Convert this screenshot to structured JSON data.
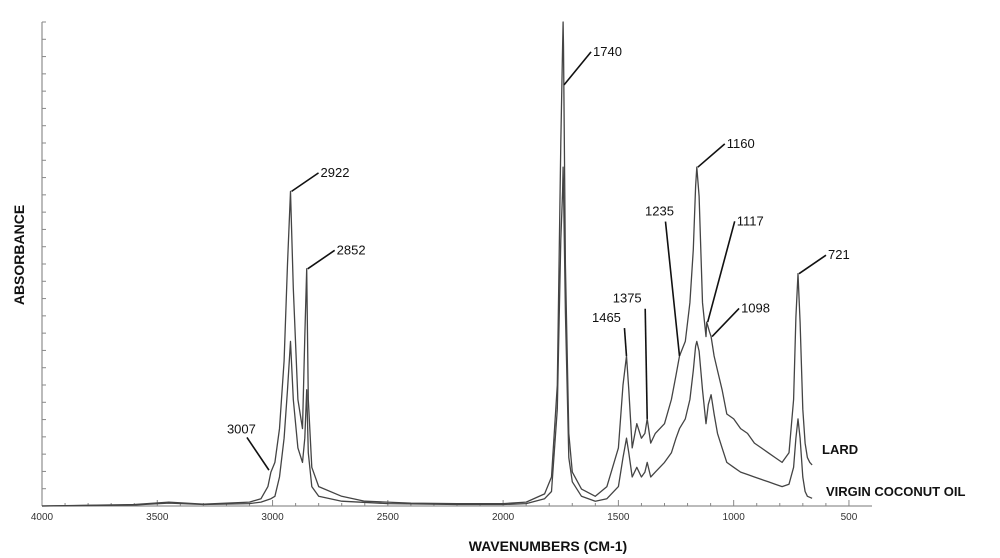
{
  "chart_data": {
    "type": "line",
    "title": "",
    "xlabel": "WAVENUMBERS (CM-1)",
    "ylabel": "ABSORBANCE",
    "xlim": [
      4000,
      400
    ],
    "x_reversed": true,
    "ylim": [
      0,
      1
    ],
    "x_ticks": [
      4000,
      3500,
      3000,
      2500,
      2000,
      1500,
      1000,
      500
    ],
    "grid": false,
    "series": [
      {
        "name": "LARD",
        "color": "#444444",
        "points": [
          [
            4000,
            0.0
          ],
          [
            3600,
            0.003
          ],
          [
            3450,
            0.008
          ],
          [
            3300,
            0.004
          ],
          [
            3100,
            0.008
          ],
          [
            3050,
            0.015
          ],
          [
            3020,
            0.04
          ],
          [
            3007,
            0.07
          ],
          [
            2990,
            0.09
          ],
          [
            2970,
            0.16
          ],
          [
            2950,
            0.3
          ],
          [
            2935,
            0.5
          ],
          [
            2922,
            0.65
          ],
          [
            2910,
            0.45
          ],
          [
            2890,
            0.22
          ],
          [
            2870,
            0.16
          ],
          [
            2860,
            0.35
          ],
          [
            2852,
            0.49
          ],
          [
            2845,
            0.22
          ],
          [
            2830,
            0.08
          ],
          [
            2800,
            0.04
          ],
          [
            2700,
            0.02
          ],
          [
            2600,
            0.01
          ],
          [
            2400,
            0.006
          ],
          [
            2200,
            0.005
          ],
          [
            2000,
            0.005
          ],
          [
            1900,
            0.008
          ],
          [
            1820,
            0.025
          ],
          [
            1790,
            0.06
          ],
          [
            1765,
            0.25
          ],
          [
            1750,
            0.75
          ],
          [
            1742,
            0.95
          ],
          [
            1740,
            1.0
          ],
          [
            1738,
            0.95
          ],
          [
            1730,
            0.5
          ],
          [
            1715,
            0.15
          ],
          [
            1700,
            0.07
          ],
          [
            1660,
            0.035
          ],
          [
            1600,
            0.02
          ],
          [
            1550,
            0.04
          ],
          [
            1500,
            0.12
          ],
          [
            1480,
            0.25
          ],
          [
            1465,
            0.31
          ],
          [
            1455,
            0.24
          ],
          [
            1440,
            0.12
          ],
          [
            1420,
            0.17
          ],
          [
            1400,
            0.14
          ],
          [
            1385,
            0.15
          ],
          [
            1375,
            0.18
          ],
          [
            1360,
            0.13
          ],
          [
            1340,
            0.15
          ],
          [
            1300,
            0.17
          ],
          [
            1270,
            0.22
          ],
          [
            1250,
            0.27
          ],
          [
            1235,
            0.31
          ],
          [
            1210,
            0.34
          ],
          [
            1190,
            0.42
          ],
          [
            1175,
            0.53
          ],
          [
            1165,
            0.66
          ],
          [
            1160,
            0.7
          ],
          [
            1150,
            0.64
          ],
          [
            1135,
            0.42
          ],
          [
            1120,
            0.35
          ],
          [
            1117,
            0.38
          ],
          [
            1105,
            0.36
          ],
          [
            1098,
            0.35
          ],
          [
            1085,
            0.31
          ],
          [
            1070,
            0.28
          ],
          [
            1050,
            0.24
          ],
          [
            1030,
            0.19
          ],
          [
            1000,
            0.18
          ],
          [
            970,
            0.16
          ],
          [
            940,
            0.15
          ],
          [
            910,
            0.13
          ],
          [
            880,
            0.12
          ],
          [
            850,
            0.11
          ],
          [
            820,
            0.1
          ],
          [
            790,
            0.09
          ],
          [
            760,
            0.11
          ],
          [
            740,
            0.22
          ],
          [
            730,
            0.39
          ],
          [
            721,
            0.48
          ],
          [
            712,
            0.38
          ],
          [
            700,
            0.2
          ],
          [
            690,
            0.13
          ],
          [
            680,
            0.1
          ],
          [
            670,
            0.09
          ],
          [
            660,
            0.085
          ]
        ]
      },
      {
        "name": "VIRGIN COCONUT OIL",
        "color": "#444444",
        "points": [
          [
            4000,
            0.0
          ],
          [
            3600,
            0.002
          ],
          [
            3450,
            0.006
          ],
          [
            3300,
            0.003
          ],
          [
            3100,
            0.005
          ],
          [
            3050,
            0.008
          ],
          [
            3007,
            0.015
          ],
          [
            2990,
            0.02
          ],
          [
            2970,
            0.06
          ],
          [
            2950,
            0.14
          ],
          [
            2935,
            0.24
          ],
          [
            2922,
            0.34
          ],
          [
            2910,
            0.22
          ],
          [
            2890,
            0.12
          ],
          [
            2870,
            0.09
          ],
          [
            2860,
            0.14
          ],
          [
            2852,
            0.24
          ],
          [
            2845,
            0.11
          ],
          [
            2830,
            0.04
          ],
          [
            2800,
            0.02
          ],
          [
            2700,
            0.01
          ],
          [
            2500,
            0.005
          ],
          [
            2200,
            0.003
          ],
          [
            2000,
            0.003
          ],
          [
            1900,
            0.005
          ],
          [
            1820,
            0.015
          ],
          [
            1790,
            0.03
          ],
          [
            1765,
            0.2
          ],
          [
            1750,
            0.55
          ],
          [
            1742,
            0.65
          ],
          [
            1740,
            0.7
          ],
          [
            1738,
            0.66
          ],
          [
            1730,
            0.4
          ],
          [
            1715,
            0.1
          ],
          [
            1700,
            0.05
          ],
          [
            1660,
            0.02
          ],
          [
            1600,
            0.01
          ],
          [
            1550,
            0.015
          ],
          [
            1500,
            0.04
          ],
          [
            1480,
            0.1
          ],
          [
            1465,
            0.14
          ],
          [
            1455,
            0.11
          ],
          [
            1440,
            0.06
          ],
          [
            1420,
            0.08
          ],
          [
            1400,
            0.06
          ],
          [
            1385,
            0.07
          ],
          [
            1375,
            0.09
          ],
          [
            1360,
            0.06
          ],
          [
            1340,
            0.07
          ],
          [
            1300,
            0.09
          ],
          [
            1270,
            0.11
          ],
          [
            1250,
            0.14
          ],
          [
            1235,
            0.16
          ],
          [
            1210,
            0.18
          ],
          [
            1190,
            0.22
          ],
          [
            1175,
            0.28
          ],
          [
            1165,
            0.33
          ],
          [
            1160,
            0.34
          ],
          [
            1150,
            0.32
          ],
          [
            1135,
            0.24
          ],
          [
            1120,
            0.17
          ],
          [
            1110,
            0.21
          ],
          [
            1098,
            0.23
          ],
          [
            1085,
            0.19
          ],
          [
            1070,
            0.15
          ],
          [
            1050,
            0.12
          ],
          [
            1030,
            0.09
          ],
          [
            1000,
            0.08
          ],
          [
            970,
            0.07
          ],
          [
            940,
            0.065
          ],
          [
            910,
            0.06
          ],
          [
            880,
            0.055
          ],
          [
            850,
            0.05
          ],
          [
            820,
            0.045
          ],
          [
            790,
            0.04
          ],
          [
            760,
            0.045
          ],
          [
            740,
            0.08
          ],
          [
            730,
            0.14
          ],
          [
            721,
            0.18
          ],
          [
            712,
            0.14
          ],
          [
            700,
            0.06
          ],
          [
            690,
            0.03
          ],
          [
            680,
            0.02
          ],
          [
            670,
            0.018
          ],
          [
            660,
            0.016
          ]
        ]
      }
    ],
    "annotations": [
      {
        "label": "1740",
        "x": 1740,
        "y": 0.87,
        "ly": 0.93
      },
      {
        "label": "2922",
        "x": 2922,
        "y": 0.65,
        "ly": 0.68
      },
      {
        "label": "2852",
        "x": 2852,
        "y": 0.49,
        "ly": 0.52
      },
      {
        "label": "3007",
        "x": 3007,
        "y": 0.07,
        "ly": 0.15
      },
      {
        "label": "1160",
        "x": 1160,
        "y": 0.7,
        "ly": 0.74
      },
      {
        "label": "1235",
        "x": 1235,
        "y": 0.31,
        "ly": 0.6
      },
      {
        "label": "1117",
        "x": 1117,
        "y": 0.38,
        "ly": 0.58
      },
      {
        "label": "1098",
        "x": 1098,
        "y": 0.35,
        "ly": 0.4
      },
      {
        "label": "721",
        "x": 721,
        "y": 0.48,
        "ly": 0.51
      },
      {
        "label": "1465",
        "x": 1465,
        "y": 0.31,
        "ly": 0.38
      },
      {
        "label": "1375",
        "x": 1375,
        "y": 0.18,
        "ly": 0.42
      }
    ]
  }
}
